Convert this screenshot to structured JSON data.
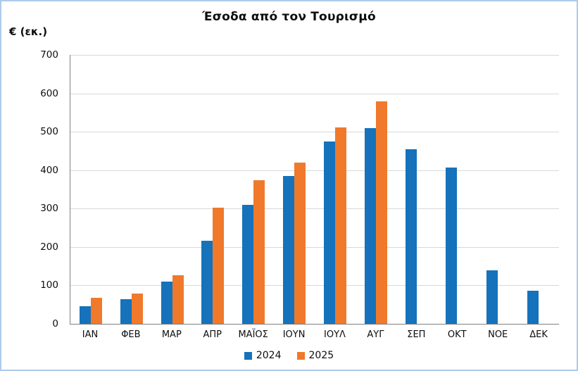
{
  "window": {
    "background_color": "#FFFFFF",
    "frame_border_color": "#AECBEA"
  },
  "title": "Έσοδα από τον Τουρισμό",
  "y_axis_unit_label": "€ (εκ.)",
  "legend": {
    "position": "bottom-center",
    "items": [
      {
        "label": "2024",
        "color": "#1572BB"
      },
      {
        "label": "2025",
        "color": "#F0792B"
      }
    ]
  },
  "chart_data": {
    "type": "bar",
    "title": "Έσοδα από τον Τουρισμό",
    "ylabel": "€ (εκ.)",
    "xlabel": "",
    "categories": [
      "ΙΑΝ",
      "ΦΕΒ",
      "ΜΑΡ",
      "ΑΠΡ",
      "ΜΑΪΟΣ",
      "ΙΟΥΝ",
      "ΙΟΥΛ",
      "ΑΥΓ",
      "ΣΕΠ",
      "ΟΚΤ",
      "ΝΟΕ",
      "ΔΕΚ"
    ],
    "series": [
      {
        "name": "2024",
        "color": "#1572BB",
        "values": [
          45,
          64,
          110,
          217,
          310,
          384,
          475,
          510,
          455,
          407,
          139,
          86
        ]
      },
      {
        "name": "2025",
        "color": "#F0792B",
        "values": [
          68,
          79,
          127,
          303,
          373,
          420,
          512,
          580,
          null,
          null,
          null,
          null
        ]
      }
    ],
    "ylim": [
      0,
      700
    ],
    "yticks": [
      0,
      100,
      200,
      300,
      400,
      500,
      600,
      700
    ],
    "grid": "horizontal",
    "gridline_color": "#D9D9D9",
    "axis_line_color": "#7F7F7F",
    "legend_position": "bottom"
  }
}
